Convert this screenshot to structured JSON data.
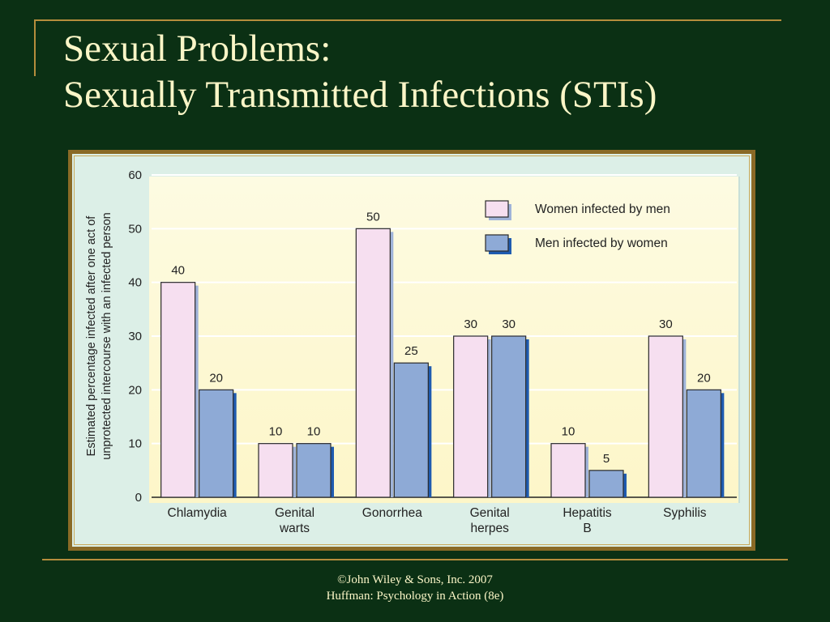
{
  "slide": {
    "title_line1": "Sexual Problems:",
    "title_line2": "Sexually Transmitted Infections (STIs)",
    "footer_line1": "©John Wiley & Sons, Inc. 2007",
    "footer_line2": "Huffman: Psychology in Action (8e)"
  },
  "colors": {
    "background": "#0b3014",
    "title_text": "#fbf6c7",
    "accent_rule": "#b58d3c",
    "women_bar": "#f6dff0",
    "men_bar": "#8eaad6",
    "bar_shadow": "#1f5bb0"
  },
  "chart_data": {
    "type": "bar",
    "ylabel_line1": "Estimated percentage infected after one act of",
    "ylabel_line2": "unprotected intercourse with an infected person",
    "xlabel": "",
    "ylim": [
      0,
      60
    ],
    "yticks": [
      0,
      10,
      20,
      30,
      40,
      50,
      60
    ],
    "grid": true,
    "legend_position": "top-right",
    "categories": [
      [
        "Chlamydia"
      ],
      [
        "Genital",
        "warts"
      ],
      [
        "Gonorrhea"
      ],
      [
        "Genital",
        "herpes"
      ],
      [
        "Hepatitis",
        "B"
      ],
      [
        "Syphilis"
      ]
    ],
    "series": [
      {
        "name": "Women infected by men",
        "values": [
          40,
          10,
          50,
          30,
          10,
          30
        ],
        "labels": [
          "40",
          "10",
          "50",
          "30",
          "10",
          "30"
        ]
      },
      {
        "name": "Men infected by women",
        "values": [
          20,
          10,
          25,
          30,
          5,
          20
        ],
        "labels": [
          "20",
          "10",
          "25",
          "30",
          "5",
          "20"
        ]
      }
    ]
  }
}
